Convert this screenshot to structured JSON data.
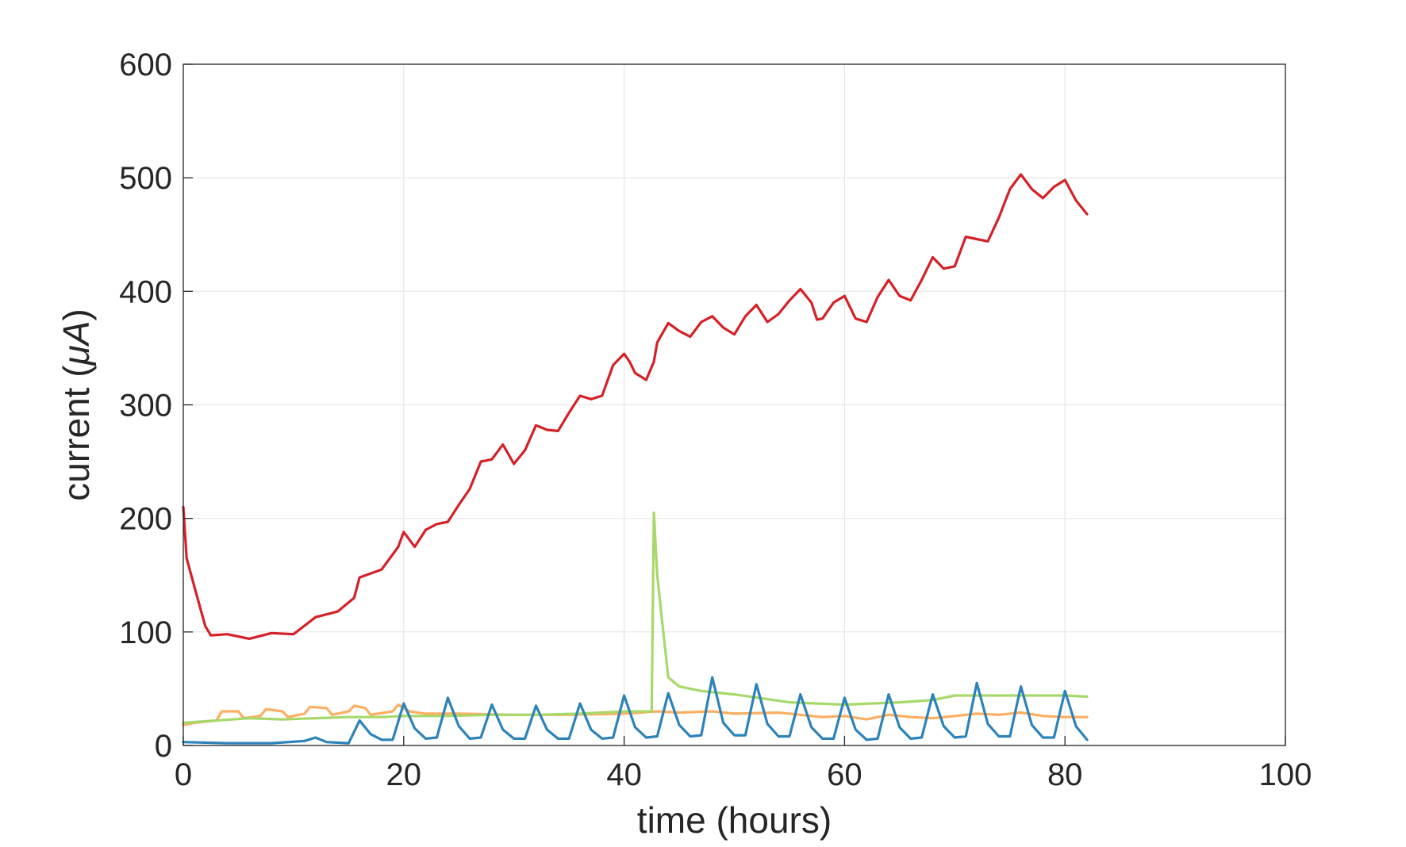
{
  "chart_data": {
    "type": "line",
    "xlabel": "time (hours)",
    "ylabel_text": "current (",
    "ylabel_unit": "μA",
    "ylabel_close": ")",
    "xlim": [
      0,
      100
    ],
    "ylim": [
      0,
      600
    ],
    "xticks": [
      "0",
      "20",
      "40",
      "60",
      "80",
      "100"
    ],
    "yticks": [
      "0",
      "100",
      "200",
      "300",
      "400",
      "500",
      "600"
    ],
    "grid": true,
    "series": [
      {
        "color": "#d62027",
        "points": [
          [
            0,
            210
          ],
          [
            0.3,
            165
          ],
          [
            1,
            140
          ],
          [
            2,
            105
          ],
          [
            2.5,
            97
          ],
          [
            4,
            98
          ],
          [
            6,
            94
          ],
          [
            8,
            99
          ],
          [
            10,
            98
          ],
          [
            12,
            113
          ],
          [
            14,
            118
          ],
          [
            15.5,
            130
          ],
          [
            16,
            148
          ],
          [
            18,
            155
          ],
          [
            19.5,
            175
          ],
          [
            20,
            188
          ],
          [
            21,
            175
          ],
          [
            22,
            190
          ],
          [
            23,
            195
          ],
          [
            24,
            197
          ],
          [
            25,
            212
          ],
          [
            26,
            226
          ],
          [
            27,
            250
          ],
          [
            28,
            252
          ],
          [
            29,
            265
          ],
          [
            30,
            248
          ],
          [
            31,
            260
          ],
          [
            32,
            282
          ],
          [
            33,
            278
          ],
          [
            34,
            277
          ],
          [
            35,
            293
          ],
          [
            36,
            308
          ],
          [
            37,
            305
          ],
          [
            38,
            308
          ],
          [
            39,
            335
          ],
          [
            40,
            345
          ],
          [
            40.5,
            338
          ],
          [
            41,
            328
          ],
          [
            42,
            322
          ],
          [
            42.7,
            338
          ],
          [
            43,
            355
          ],
          [
            44,
            372
          ],
          [
            45,
            365
          ],
          [
            46,
            360
          ],
          [
            47,
            373
          ],
          [
            48,
            378
          ],
          [
            49,
            368
          ],
          [
            50,
            362
          ],
          [
            51,
            378
          ],
          [
            52,
            388
          ],
          [
            53,
            373
          ],
          [
            54,
            380
          ],
          [
            55,
            392
          ],
          [
            56,
            402
          ],
          [
            57,
            390
          ],
          [
            57.5,
            375
          ],
          [
            58,
            376
          ],
          [
            59,
            390
          ],
          [
            60,
            396
          ],
          [
            61,
            376
          ],
          [
            62,
            373
          ],
          [
            63,
            395
          ],
          [
            64,
            410
          ],
          [
            65,
            396
          ],
          [
            66,
            392
          ],
          [
            67,
            410
          ],
          [
            68,
            430
          ],
          [
            69,
            420
          ],
          [
            70,
            422
          ],
          [
            71,
            448
          ],
          [
            72,
            446
          ],
          [
            73,
            444
          ],
          [
            74,
            465
          ],
          [
            75,
            490
          ],
          [
            76,
            503
          ],
          [
            77,
            490
          ],
          [
            78,
            482
          ],
          [
            79,
            492
          ],
          [
            80,
            498
          ],
          [
            81,
            480
          ],
          [
            82,
            468
          ]
        ]
      },
      {
        "color": "#fdae61",
        "points": [
          [
            0,
            18
          ],
          [
            1,
            20
          ],
          [
            3,
            22
          ],
          [
            3.5,
            30
          ],
          [
            5,
            30
          ],
          [
            5.5,
            24
          ],
          [
            7,
            26
          ],
          [
            7.5,
            32
          ],
          [
            9,
            30
          ],
          [
            9.5,
            25
          ],
          [
            11,
            28
          ],
          [
            11.5,
            34
          ],
          [
            13,
            33
          ],
          [
            13.5,
            27
          ],
          [
            15,
            30
          ],
          [
            15.5,
            35
          ],
          [
            16.5,
            33
          ],
          [
            17,
            27
          ],
          [
            19,
            30
          ],
          [
            19.5,
            36
          ],
          [
            20.5,
            30
          ],
          [
            22,
            28
          ],
          [
            25,
            28
          ],
          [
            30,
            27
          ],
          [
            35,
            27
          ],
          [
            40,
            28
          ],
          [
            43,
            30
          ],
          [
            45,
            29
          ],
          [
            48,
            30
          ],
          [
            50,
            28
          ],
          [
            54,
            29
          ],
          [
            56,
            27
          ],
          [
            58,
            25
          ],
          [
            60,
            26
          ],
          [
            62,
            23
          ],
          [
            64,
            27
          ],
          [
            66,
            25
          ],
          [
            68,
            24
          ],
          [
            70,
            26
          ],
          [
            72,
            28
          ],
          [
            74,
            27
          ],
          [
            76,
            29
          ],
          [
            78,
            26
          ],
          [
            80,
            25
          ],
          [
            82,
            25
          ]
        ]
      },
      {
        "color": "#a6d96a",
        "points": [
          [
            0,
            20
          ],
          [
            3,
            22
          ],
          [
            6,
            24
          ],
          [
            9,
            23
          ],
          [
            12,
            24
          ],
          [
            15,
            25
          ],
          [
            18,
            25
          ],
          [
            20,
            26
          ],
          [
            24,
            26
          ],
          [
            28,
            27
          ],
          [
            32,
            27
          ],
          [
            36,
            28
          ],
          [
            40,
            30
          ],
          [
            42.5,
            30
          ],
          [
            42.7,
            205
          ],
          [
            43,
            150
          ],
          [
            43.5,
            105
          ],
          [
            44,
            60
          ],
          [
            45,
            52
          ],
          [
            47,
            48
          ],
          [
            50,
            45
          ],
          [
            55,
            38
          ],
          [
            60,
            36
          ],
          [
            65,
            38
          ],
          [
            68,
            40
          ],
          [
            70,
            44
          ],
          [
            75,
            44
          ],
          [
            80,
            44
          ],
          [
            82,
            43
          ]
        ]
      },
      {
        "color": "#2b83ba",
        "points": [
          [
            0,
            3
          ],
          [
            4,
            2
          ],
          [
            8,
            2
          ],
          [
            11,
            4
          ],
          [
            12,
            7
          ],
          [
            13,
            3
          ],
          [
            15,
            2
          ],
          [
            16,
            22
          ],
          [
            17,
            10
          ],
          [
            18,
            5
          ],
          [
            19,
            5
          ],
          [
            20,
            37
          ],
          [
            21,
            15
          ],
          [
            22,
            6
          ],
          [
            23,
            7
          ],
          [
            24,
            42
          ],
          [
            25,
            17
          ],
          [
            26,
            6
          ],
          [
            27,
            7
          ],
          [
            28,
            36
          ],
          [
            29,
            14
          ],
          [
            30,
            6
          ],
          [
            31,
            6
          ],
          [
            32,
            35
          ],
          [
            33,
            14
          ],
          [
            34,
            6
          ],
          [
            35,
            6
          ],
          [
            36,
            37
          ],
          [
            37,
            14
          ],
          [
            38,
            6
          ],
          [
            39,
            7
          ],
          [
            40,
            44
          ],
          [
            41,
            16
          ],
          [
            42,
            7
          ],
          [
            43,
            8
          ],
          [
            44,
            46
          ],
          [
            45,
            18
          ],
          [
            46,
            8
          ],
          [
            47,
            9
          ],
          [
            48,
            60
          ],
          [
            49,
            20
          ],
          [
            50,
            9
          ],
          [
            51,
            9
          ],
          [
            52,
            54
          ],
          [
            53,
            19
          ],
          [
            54,
            8
          ],
          [
            55,
            8
          ],
          [
            56,
            45
          ],
          [
            57,
            16
          ],
          [
            58,
            6
          ],
          [
            59,
            6
          ],
          [
            60,
            42
          ],
          [
            61,
            14
          ],
          [
            62,
            5
          ],
          [
            63,
            6
          ],
          [
            64,
            45
          ],
          [
            65,
            16
          ],
          [
            66,
            6
          ],
          [
            67,
            7
          ],
          [
            68,
            45
          ],
          [
            69,
            17
          ],
          [
            70,
            7
          ],
          [
            71,
            8
          ],
          [
            72,
            55
          ],
          [
            73,
            19
          ],
          [
            74,
            8
          ],
          [
            75,
            8
          ],
          [
            76,
            52
          ],
          [
            77,
            18
          ],
          [
            78,
            7
          ],
          [
            79,
            7
          ],
          [
            80,
            48
          ],
          [
            81,
            17
          ],
          [
            82,
            5
          ]
        ]
      }
    ]
  }
}
